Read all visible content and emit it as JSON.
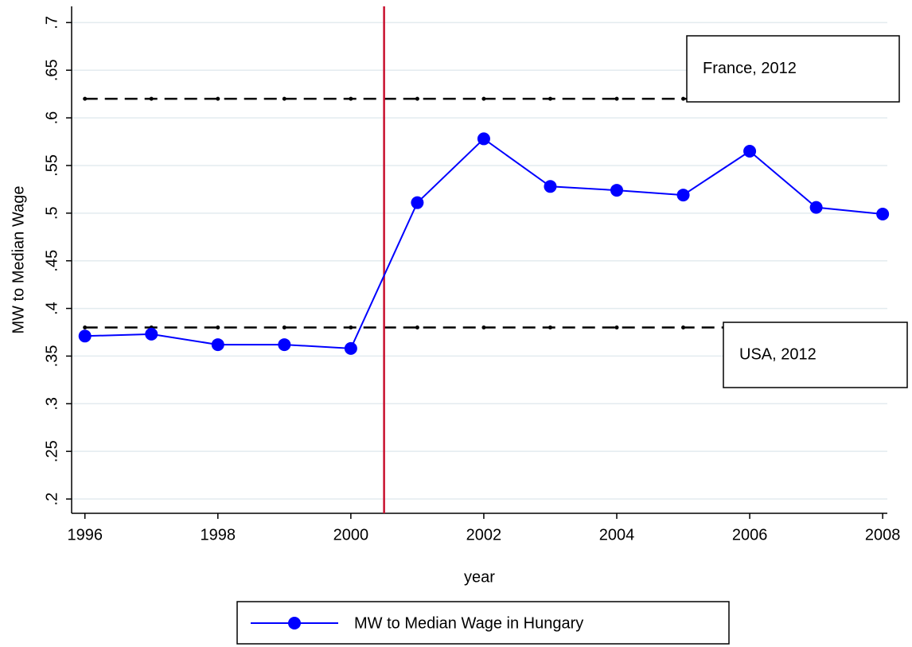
{
  "chart_data": {
    "type": "line",
    "x_label": "year",
    "y_label": "MW to Median Wage",
    "x": [
      1996,
      1997,
      1998,
      1999,
      2000,
      2001,
      2002,
      2003,
      2004,
      2005,
      2006,
      2007,
      2008
    ],
    "series": [
      {
        "name": "MW to Median Wage in Hungary",
        "color": "#0000ff",
        "values": [
          0.371,
          0.373,
          0.362,
          0.362,
          0.358,
          0.511,
          0.578,
          0.528,
          0.524,
          0.519,
          0.565,
          0.506,
          0.499
        ]
      }
    ],
    "xlim": [
      1995.8,
      2008.07
    ],
    "ylim": [
      0.185,
      0.717
    ],
    "xticks": [
      1996,
      1998,
      2000,
      2002,
      2004,
      2006,
      2008
    ],
    "yticks": [
      {
        "value": 0.2,
        "label": ".2"
      },
      {
        "value": 0.25,
        "label": ".25"
      },
      {
        "value": 0.3,
        "label": ".3"
      },
      {
        "value": 0.35,
        "label": ".35"
      },
      {
        "value": 0.4,
        "label": ".4"
      },
      {
        "value": 0.45,
        "label": ".45"
      },
      {
        "value": 0.5,
        "label": ".5"
      },
      {
        "value": 0.55,
        "label": ".55"
      },
      {
        "value": 0.6,
        "label": ".6"
      },
      {
        "value": 0.65,
        "label": ".65"
      },
      {
        "value": 0.7,
        "label": ".7"
      }
    ],
    "grid": true,
    "vline": {
      "value": 2000.5,
      "color": "#c8102e"
    },
    "reference_lines": [
      {
        "name": "France, 2012",
        "value": 0.62,
        "x_range": [
          1996,
          2005
        ]
      },
      {
        "name": "USA, 2012",
        "value": 0.38,
        "x_range": [
          1996,
          2005
        ]
      }
    ]
  }
}
